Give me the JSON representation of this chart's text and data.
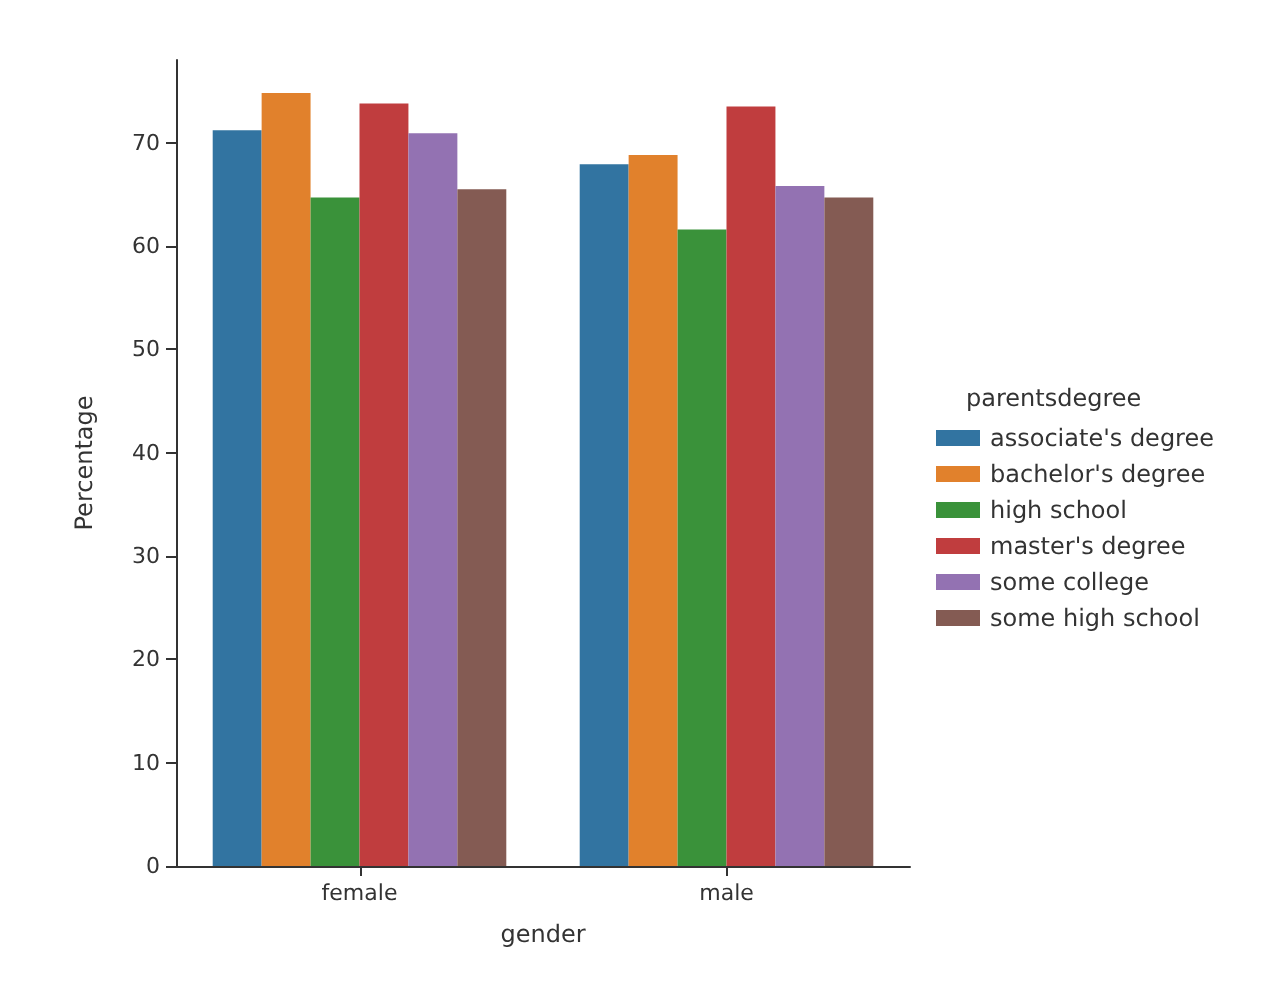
{
  "chart_data": {
    "type": "bar",
    "xlabel": "gender",
    "ylabel": "Percentage",
    "legend_title": "parentsdegree",
    "categories": [
      "female",
      "male"
    ],
    "series": [
      {
        "name": "associate's degree",
        "color": "#3274a1",
        "values": [
          71.2,
          67.9
        ]
      },
      {
        "name": "bachelor's degree",
        "color": "#e1812c",
        "values": [
          74.8,
          68.8
        ]
      },
      {
        "name": "high school",
        "color": "#3a923a",
        "values": [
          64.7,
          61.6
        ]
      },
      {
        "name": "master's degree",
        "color": "#c03d3e",
        "values": [
          73.8,
          73.5
        ]
      },
      {
        "name": "some college",
        "color": "#9372b2",
        "values": [
          70.9,
          65.8
        ]
      },
      {
        "name": "some high school",
        "color": "#845b53",
        "values": [
          65.5,
          64.7
        ]
      }
    ],
    "ylim": [
      0,
      78
    ],
    "yticks": [
      0,
      10,
      20,
      30,
      40,
      50,
      60,
      70
    ],
    "grid": false,
    "legend": "right"
  }
}
